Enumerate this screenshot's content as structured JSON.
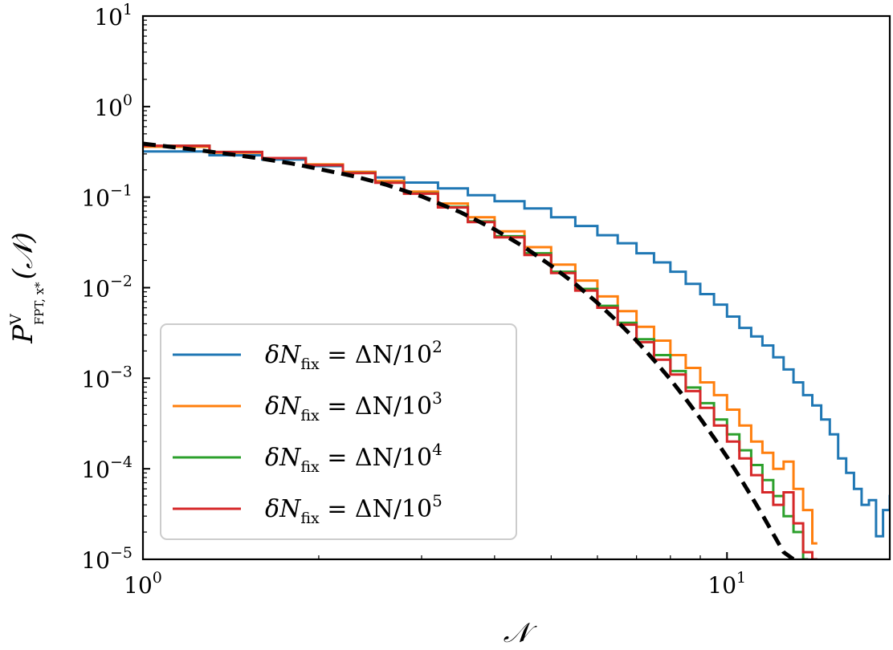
{
  "chart_data": {
    "type": "line",
    "title": "",
    "xlabel": "𝒩",
    "ylabel": {
      "base": "P",
      "sup": "V",
      "sub": "FPT, x*",
      "tail": "(𝒩)"
    },
    "x_scale": "log",
    "y_scale": "log",
    "xlim": [
      1,
      19
    ],
    "ylim": [
      1e-05,
      10
    ],
    "x_ticks": [
      {
        "base": "10",
        "exp": "0",
        "value": 1
      },
      {
        "base": "10",
        "exp": "1",
        "value": 10
      }
    ],
    "y_ticks": [
      {
        "base": "10",
        "exp": "1",
        "value": 10
      },
      {
        "base": "10",
        "exp": "0",
        "value": 1
      },
      {
        "base": "10",
        "exp": "−1",
        "value": 0.1
      },
      {
        "base": "10",
        "exp": "−2",
        "value": 0.01
      },
      {
        "base": "10",
        "exp": "−3",
        "value": 0.001
      },
      {
        "base": "10",
        "exp": "−4",
        "value": 0.0001
      },
      {
        "base": "10",
        "exp": "−5",
        "value": 1e-05
      }
    ],
    "grid": false,
    "legend_position": "lower-left",
    "series": [
      {
        "name": "δN_fix = ΔN/10^2",
        "legend": {
          "pre": "δ",
          "N": "N",
          "sub": "fix",
          "mid": " = ΔN/10",
          "sup": "2"
        },
        "color": "#1f77b4",
        "style": "step",
        "points": [
          [
            1.0,
            0.32
          ],
          [
            1.3,
            0.29
          ],
          [
            1.6,
            0.26
          ],
          [
            1.9,
            0.22
          ],
          [
            2.2,
            0.19
          ],
          [
            2.5,
            0.165
          ],
          [
            2.8,
            0.145
          ],
          [
            3.2,
            0.125
          ],
          [
            3.6,
            0.105
          ],
          [
            4.0,
            0.09
          ],
          [
            4.5,
            0.075
          ],
          [
            5.0,
            0.06
          ],
          [
            5.5,
            0.048
          ],
          [
            6.0,
            0.038
          ],
          [
            6.5,
            0.031
          ],
          [
            7.0,
            0.024
          ],
          [
            7.5,
            0.019
          ],
          [
            8.0,
            0.015
          ],
          [
            8.5,
            0.011
          ],
          [
            9.0,
            0.0085
          ],
          [
            9.5,
            0.0065
          ],
          [
            10.0,
            0.0048
          ],
          [
            10.5,
            0.0036
          ],
          [
            11.0,
            0.0029
          ],
          [
            11.5,
            0.0023
          ],
          [
            12.0,
            0.0017
          ],
          [
            12.5,
            0.00125
          ],
          [
            13.0,
            0.0009
          ],
          [
            13.5,
            0.00065
          ],
          [
            14.0,
            0.0005
          ],
          [
            14.5,
            0.00035
          ],
          [
            15.0,
            0.00024
          ],
          [
            15.5,
            0.00013
          ],
          [
            16.0,
            9e-05
          ],
          [
            16.5,
            6e-05
          ],
          [
            17.0,
            4e-05
          ],
          [
            17.5,
            4.5e-05
          ],
          [
            18.0,
            1.8e-05
          ],
          [
            18.5,
            3.5e-05
          ],
          [
            19.0,
            5e-05
          ]
        ]
      },
      {
        "name": "δN_fix = ΔN/10^3",
        "legend": {
          "pre": "δ",
          "N": "N",
          "sub": "fix",
          "mid": " = ΔN/10",
          "sup": "3"
        },
        "color": "#ff7f0e",
        "style": "step",
        "points": [
          [
            1.0,
            0.36
          ],
          [
            1.3,
            0.31
          ],
          [
            1.6,
            0.27
          ],
          [
            1.9,
            0.23
          ],
          [
            2.2,
            0.19
          ],
          [
            2.5,
            0.15
          ],
          [
            2.8,
            0.115
          ],
          [
            3.2,
            0.085
          ],
          [
            3.6,
            0.06
          ],
          [
            4.0,
            0.042
          ],
          [
            4.5,
            0.028
          ],
          [
            5.0,
            0.018
          ],
          [
            5.5,
            0.012
          ],
          [
            6.0,
            0.008
          ],
          [
            6.5,
            0.0055
          ],
          [
            7.0,
            0.0037
          ],
          [
            7.5,
            0.0026
          ],
          [
            8.0,
            0.0018
          ],
          [
            8.5,
            0.0013
          ],
          [
            9.0,
            0.0009
          ],
          [
            9.5,
            0.00065
          ],
          [
            10.0,
            0.00045
          ],
          [
            10.5,
            0.0003
          ],
          [
            11.0,
            0.0002
          ],
          [
            11.5,
            0.00015
          ],
          [
            12.0,
            0.0001
          ],
          [
            12.5,
            0.00012
          ],
          [
            13.0,
            6e-05
          ],
          [
            13.5,
            3.5e-05
          ],
          [
            14.0,
            1.5e-05
          ]
        ]
      },
      {
        "name": "δN_fix = ΔN/10^4",
        "legend": {
          "pre": "δ",
          "N": "N",
          "sub": "fix",
          "mid": " = ΔN/10",
          "sup": "4"
        },
        "color": "#2ca02c",
        "style": "step",
        "points": [
          [
            1.0,
            0.37
          ],
          [
            1.3,
            0.315
          ],
          [
            1.6,
            0.27
          ],
          [
            1.9,
            0.225
          ],
          [
            2.2,
            0.185
          ],
          [
            2.5,
            0.145
          ],
          [
            2.8,
            0.11
          ],
          [
            3.2,
            0.078
          ],
          [
            3.6,
            0.054
          ],
          [
            4.0,
            0.037
          ],
          [
            4.5,
            0.024
          ],
          [
            5.0,
            0.015
          ],
          [
            5.5,
            0.0097
          ],
          [
            6.0,
            0.0063
          ],
          [
            6.5,
            0.0041
          ],
          [
            7.0,
            0.0027
          ],
          [
            7.5,
            0.0018
          ],
          [
            8.0,
            0.0012
          ],
          [
            8.5,
            0.00079
          ],
          [
            9.0,
            0.00053
          ],
          [
            9.5,
            0.00035
          ],
          [
            10.0,
            0.00024
          ],
          [
            10.5,
            0.00016
          ],
          [
            11.0,
            0.00011
          ],
          [
            11.5,
            7.5e-05
          ],
          [
            12.0,
            5e-05
          ],
          [
            12.5,
            3e-05
          ],
          [
            13.0,
            2e-05
          ],
          [
            13.5,
            1e-05
          ]
        ]
      },
      {
        "name": "δN_fix = ΔN/10^5",
        "legend": {
          "pre": "δ",
          "N": "N",
          "sub": "fix",
          "mid": " = ΔN/10",
          "sup": "5"
        },
        "color": "#d62728",
        "style": "step",
        "points": [
          [
            1.0,
            0.37
          ],
          [
            1.3,
            0.315
          ],
          [
            1.6,
            0.27
          ],
          [
            1.9,
            0.225
          ],
          [
            2.2,
            0.184
          ],
          [
            2.5,
            0.144
          ],
          [
            2.8,
            0.109
          ],
          [
            3.2,
            0.077
          ],
          [
            3.6,
            0.053
          ],
          [
            4.0,
            0.036
          ],
          [
            4.5,
            0.023
          ],
          [
            5.0,
            0.0145
          ],
          [
            5.5,
            0.0093
          ],
          [
            6.0,
            0.006
          ],
          [
            6.5,
            0.0039
          ],
          [
            7.0,
            0.0025
          ],
          [
            7.5,
            0.0016
          ],
          [
            8.0,
            0.0011
          ],
          [
            8.5,
            0.00072
          ],
          [
            9.0,
            0.00047
          ],
          [
            9.5,
            0.0003
          ],
          [
            10.0,
            0.0002
          ],
          [
            10.5,
            0.00013
          ],
          [
            11.0,
            8.5e-05
          ],
          [
            11.5,
            5.5e-05
          ],
          [
            12.0,
            4e-05
          ],
          [
            12.5,
            5.5e-05
          ],
          [
            13.0,
            2.5e-05
          ],
          [
            13.5,
            1.2e-05
          ],
          [
            14.0,
            1e-05
          ]
        ]
      },
      {
        "name": "",
        "color": "#000000",
        "style": "dashed",
        "points": [
          [
            1.0,
            0.39
          ],
          [
            1.2,
            0.34
          ],
          [
            1.4,
            0.3
          ],
          [
            1.6,
            0.265
          ],
          [
            1.8,
            0.235
          ],
          [
            2.0,
            0.205
          ],
          [
            2.3,
            0.17
          ],
          [
            2.6,
            0.138
          ],
          [
            3.0,
            0.102
          ],
          [
            3.5,
            0.068
          ],
          [
            4.0,
            0.044
          ],
          [
            4.5,
            0.028
          ],
          [
            5.0,
            0.0175
          ],
          [
            5.5,
            0.011
          ],
          [
            6.0,
            0.0068
          ],
          [
            6.5,
            0.0042
          ],
          [
            7.0,
            0.0026
          ],
          [
            7.5,
            0.00158
          ],
          [
            8.0,
            0.00097
          ],
          [
            8.5,
            0.00059
          ],
          [
            9.0,
            0.00036
          ],
          [
            9.5,
            0.00022
          ],
          [
            10.0,
            0.000135
          ],
          [
            10.5,
            8.2e-05
          ],
          [
            11.0,
            5e-05
          ],
          [
            11.5,
            3.1e-05
          ],
          [
            12.0,
            1.9e-05
          ],
          [
            12.5,
            1.2e-05
          ],
          [
            13.0,
            1e-05
          ]
        ]
      }
    ]
  }
}
